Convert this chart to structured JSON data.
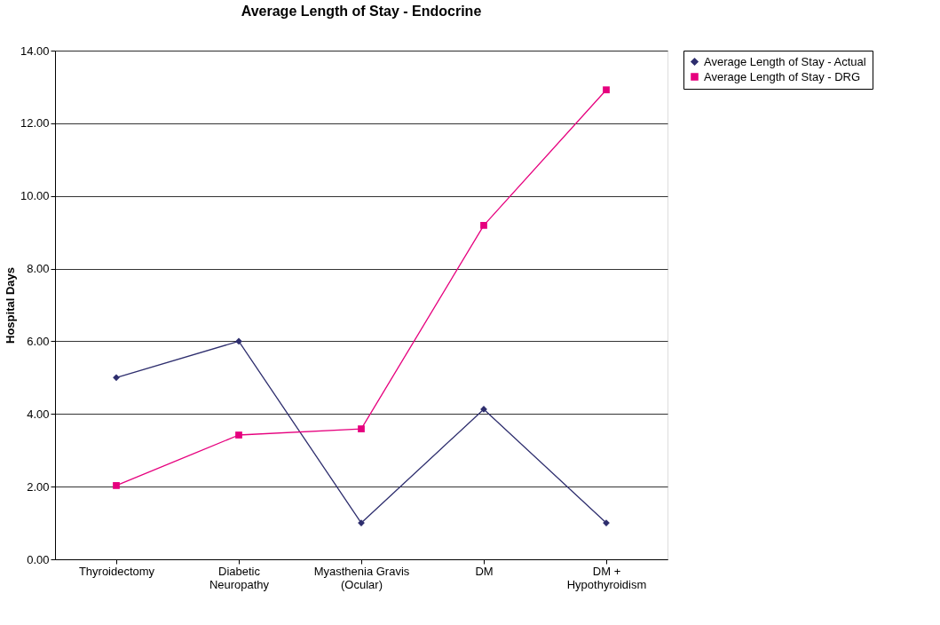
{
  "chart_data": {
    "type": "line",
    "title": "Average Length of Stay - Endocrine",
    "ylabel": "Hospital Days",
    "categories": [
      "Thyroidectomy",
      "Diabetic Neuropathy",
      "Myasthenia Gravis (Ocular)",
      "DM",
      "DM + Hypothyroidism"
    ],
    "series": [
      {
        "name": "Average Length of Stay - Actual",
        "color": "#2e2e6e",
        "marker": "diamond",
        "values": [
          5.0,
          6.0,
          1.0,
          4.13,
          1.0
        ]
      },
      {
        "name": "Average Length of Stay - DRG",
        "color": "#e6007e",
        "marker": "square",
        "values": [
          2.03,
          3.42,
          3.59,
          9.19,
          12.92
        ]
      }
    ],
    "ylim": [
      0,
      14
    ],
    "yticks": [
      {
        "value": 0,
        "label": "0.00"
      },
      {
        "value": 2,
        "label": "2.00"
      },
      {
        "value": 4,
        "label": "4.00"
      },
      {
        "value": 6,
        "label": "6.00"
      },
      {
        "value": 8,
        "label": "8.00"
      },
      {
        "value": 10,
        "label": "10.00"
      },
      {
        "value": 12,
        "label": "12.00"
      },
      {
        "value": 14,
        "label": "14.00"
      }
    ],
    "grid": "y",
    "legend": "right"
  }
}
